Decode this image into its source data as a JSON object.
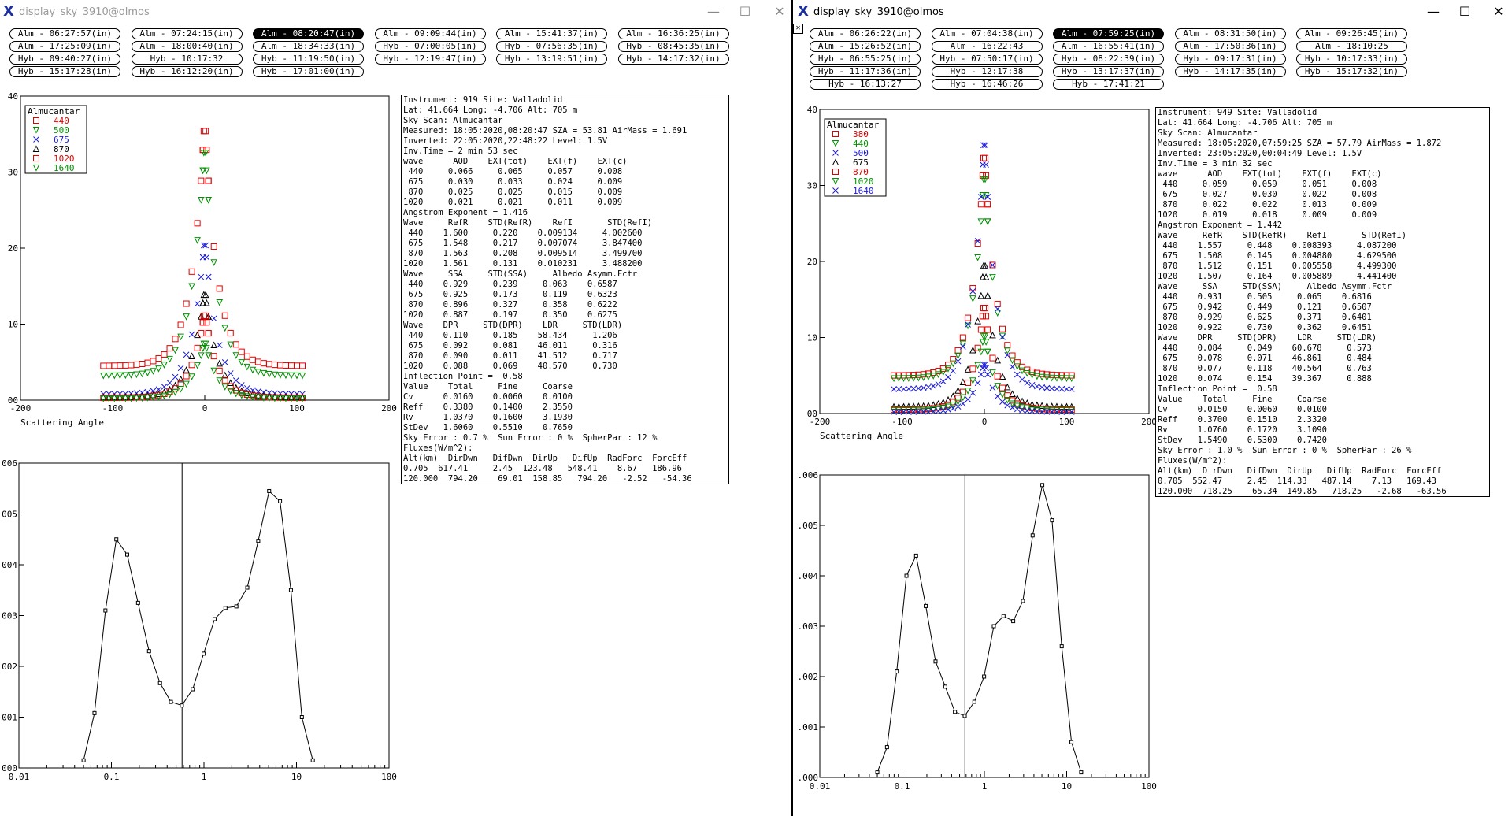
{
  "colors": {
    "red": "#e00000",
    "green": "#009000",
    "blue": "#1a1ad8",
    "black": "#000000",
    "title_x": "#1a2e9c"
  },
  "windows": [
    {
      "title": "display_sky_3910@olmos",
      "active": false,
      "buttons": [
        "Alm - 06:27:57(in)",
        "Alm - 07:24:15(in)",
        "Alm - 08:20:47(in)",
        "Alm - 09:09:44(in)",
        "Alm - 15:41:37(in)",
        "Alm - 16:36:25(in)",
        "Alm - 17:25:09(in)",
        "Alm - 18:00:40(in)",
        "Alm - 18:34:33(in)",
        "Hyb - 07:00:05(in)",
        "Hyb - 07:56:35(in)",
        "Hyb - 08:45:35(in)",
        "Hyb - 09:40:27(in)",
        "Hyb - 10:17:32",
        "Hyb - 11:19:50(in)",
        "Hyb - 12:19:47(in)",
        "Hyb - 13:19:51(in)",
        "Hyb - 14:17:32(in)",
        "Hyb - 15:17:28(in)",
        "Hyb - 16:12:20(in)",
        "Hyb - 17:01:00(in)"
      ],
      "selected_button": 2,
      "info_lines": [
        "Instrument: 919 Site: Valladolid",
        "Lat: 41.664 Long: -4.706 Alt: 705 m",
        "Sky Scan: Almucantar",
        "Measured: 18:05:2020,08:20:47 SZA = 53.81 AirMass = 1.691",
        "Inverted: 22:05:2020,22:48:22 Level: 1.5V",
        "Inv.Time = 2 min 53 sec",
        "wave      AOD    EXT(tot)    EXT(f)    EXT(c)",
        " 440     0.066     0.065     0.057     0.008",
        " 675     0.030     0.033     0.024     0.009",
        " 870     0.025     0.025     0.015     0.009",
        "1020     0.021     0.021     0.011     0.009",
        "Angstrom Exponent = 1.416",
        "Wave     RefR    STD(RefR)    RefI       STD(RefI)",
        " 440    1.600     0.220    0.009134     4.002600",
        " 675    1.548     0.217    0.007074     3.847400",
        " 870    1.563     0.208    0.009514     3.499700",
        "1020    1.561     0.131    0.010231     3.488200",
        "Wave     SSA     STD(SSA)     Albedo Asymm.Fctr",
        " 440    0.929     0.239     0.063    0.6587",
        " 675    0.925     0.173     0.119    0.6323",
        " 870    0.896     0.327     0.358    0.6222",
        "1020    0.887     0.197     0.350    0.6275",
        "Wave    DPR     STD(DPR)    LDR     STD(LDR)",
        " 440    0.110     0.185    58.434     1.206",
        " 675    0.092     0.081    46.011     0.316",
        " 870    0.090     0.011    41.512     0.717",
        "1020    0.088     0.069    40.570     0.730",
        "Inflection Point =  0.58",
        "Value    Total     Fine     Coarse",
        "Cv      0.0160    0.0060    0.0100",
        "Reff    0.3380    0.1400    2.3550",
        "Rv      1.0370    0.1600    3.1930",
        "StDev   1.6060    0.5510    0.7650",
        "Sky Error : 0.7 %  Sun Error : 0 %  SpherPar : 12 %",
        "Fluxes(W/m^2):",
        "Alt(km)  DirDwn   DifDwn  DirUp   DifUp  RadForc  ForcEff",
        "0.705  617.41     2.45  123.48   548.41    8.67   186.96",
        "120.000  794.20    69.01  158.85   794.20   -2.52   -54.36"
      ],
      "scatter_chart": {
        "type": "scatter",
        "title": "",
        "xlabel": "Scattering Angle",
        "ylabel": "",
        "xlim": [
          -200,
          200
        ],
        "ylim": [
          0,
          40
        ],
        "xticks": [
          -200,
          -100,
          0,
          100,
          200
        ],
        "yticks": [
          0,
          10,
          20,
          30,
          40
        ],
        "xtick_labels": [
          "-200",
          "-100",
          "0",
          "100",
          "200"
        ],
        "ytick_labels": [
          "00",
          "10",
          "20",
          "30",
          "40"
        ],
        "legend_title": "Almucantar",
        "legend_position": "top-left",
        "series": [
          {
            "name": "440",
            "marker": "square",
            "color": "#e00000",
            "peak": 38,
            "edge": 4.5
          },
          {
            "name": "500",
            "marker": "triangle-down",
            "color": "#009000",
            "peak": 35,
            "edge": 3.2
          },
          {
            "name": "675",
            "marker": "x",
            "color": "#1a1ad8",
            "peak": 22,
            "edge": 0.8
          },
          {
            "name": "870",
            "marker": "triangle-up",
            "color": "#000000",
            "peak": 15,
            "edge": 0.4
          },
          {
            "name": "1020",
            "marker": "square",
            "color": "#e00000",
            "peak": 12,
            "edge": 0.3
          },
          {
            "name": "1640",
            "marker": "triangle-down",
            "color": "#009000",
            "peak": 8,
            "edge": 0.2
          }
        ]
      },
      "size_chart": {
        "type": "line",
        "title": "",
        "xlabel": "",
        "ylabel": "",
        "xscale": "log",
        "xlim": [
          0.01,
          100
        ],
        "ylim": [
          0,
          0.006
        ],
        "xtick_labels": [
          "0.01",
          "0.1",
          "1",
          "10",
          "100"
        ],
        "ytick_labels": [
          "000",
          ".001",
          ".002",
          ".003",
          ".004",
          ".005",
          ".006"
        ],
        "inflection_point": 0.58,
        "x": [
          0.05,
          0.0656,
          0.0861,
          0.113,
          0.148,
          0.194,
          0.255,
          0.335,
          0.439,
          0.577,
          0.756,
          0.992,
          1.302,
          1.708,
          2.241,
          2.94,
          3.857,
          5.06,
          6.638,
          8.709,
          11.43,
          15.0
        ],
        "y": [
          0.00015,
          0.00108,
          0.0031,
          0.0045,
          0.0042,
          0.00325,
          0.0023,
          0.00167,
          0.0013,
          0.00123,
          0.00155,
          0.00225,
          0.00293,
          0.00315,
          0.00318,
          0.00355,
          0.00447,
          0.00545,
          0.00525,
          0.0035,
          0.001,
          0.00015
        ]
      }
    },
    {
      "title": "display_sky_3910@olmos",
      "active": true,
      "buttons": [
        "Alm - 06:26:22(in)",
        "Alm - 07:04:38(in)",
        "Alm - 07:59:25(in)",
        "Alm - 08:31:50(in)",
        "Alm - 09:26:45(in)",
        "Alm - 15:26:52(in)",
        "Alm - 16:22:43",
        "Alm - 16:55:41(in)",
        "Alm - 17:50:36(in)",
        "Alm - 18:10:25",
        "Hyb - 06:55:25(in)",
        "Hyb - 07:50:17(in)",
        "Hyb - 08:22:39(in)",
        "Hyb - 09:17:31(in)",
        "Hyb - 10:17:33(in)",
        "Hyb - 11:17:36(in)",
        "Hyb - 12:17:38",
        "Hyb - 13:17:37(in)",
        "Hyb - 14:17:35(in)",
        "Hyb - 15:17:32(in)",
        "Hyb - 16:13:27",
        "Hyb - 16:46:26",
        "Hyb - 17:41:21"
      ],
      "selected_button": 2,
      "info_lines": [
        "Instrument: 949 Site: Valladolid",
        "Lat: 41.664 Long: -4.706 Alt: 705 m",
        "Sky Scan: Almucantar",
        "Measured: 18:05:2020,07:59:25 SZA = 57.79 AirMass = 1.872",
        "Inverted: 23:05:2020,00:04:49 Level: 1.5V",
        "Inv.Time = 3 min 32 sec",
        "wave      AOD    EXT(tot)    EXT(f)    EXT(c)",
        " 440     0.059     0.059     0.051     0.008",
        " 675     0.027     0.030     0.022     0.008",
        " 870     0.022     0.022     0.013     0.009",
        "1020     0.019     0.018     0.009     0.009",
        "Angstrom Exponent = 1.442",
        "Wave     RefR    STD(RefR)    RefI       STD(RefI)",
        " 440    1.557     0.448    0.008393     4.087200",
        " 675    1.508     0.145    0.004880     4.629500",
        " 870    1.512     0.151    0.005558     4.499300",
        "1020    1.507     0.164    0.005889     4.441400",
        "Wave     SSA     STD(SSA)     Albedo Asymm.Fctr",
        " 440    0.931     0.505     0.065    0.6816",
        " 675    0.942     0.449     0.121    0.6507",
        " 870    0.929     0.625     0.371    0.6401",
        "1020    0.922     0.730     0.362    0.6451",
        "Wave    DPR     STD(DPR)    LDR     STD(LDR)",
        " 440    0.084     0.049    60.678     0.573",
        " 675    0.078     0.071    46.861     0.484",
        " 870    0.077     0.118    40.564     0.763",
        "1020    0.074     0.154    39.367     0.888",
        "Inflection Point =  0.58",
        "Value    Total     Fine     Coarse",
        "Cv      0.0150    0.0060    0.0100",
        "Reff    0.3700    0.1510    2.3320",
        "Rv      1.0760    0.1720    3.1090",
        "StDev   1.5490    0.5300    0.7420",
        "Sky Error : 1.0 %  Sun Error : 0 %  SpherPar : 26 %",
        "Fluxes(W/m^2):",
        "Alt(km)  DirDwn   DifDwn  DirUp   DifUp  RadForc  ForcEff",
        "0.705  552.47     2.45  114.33   487.14    7.13   169.43",
        "120.000  718.25    65.34  149.85   718.25   -2.68   -63.56"
      ],
      "scatter_chart": {
        "type": "scatter",
        "title": "",
        "xlabel": "Scattering Angle",
        "ylabel": "",
        "xlim": [
          -200,
          200
        ],
        "ylim": [
          0,
          40
        ],
        "xticks": [
          -200,
          -100,
          0,
          100,
          200
        ],
        "yticks": [
          0,
          10,
          20,
          30,
          40
        ],
        "xtick_labels": [
          "-200",
          "-100",
          "0",
          "100",
          "200"
        ],
        "ytick_labels": [
          "00",
          "10",
          "20",
          "30",
          "40"
        ],
        "legend_title": "Almucantar",
        "legend_position": "top-left",
        "series": [
          {
            "name": "380",
            "marker": "square",
            "color": "#e00000",
            "peak": 36,
            "edge": 5
          },
          {
            "name": "440",
            "marker": "triangle-down",
            "color": "#009000",
            "peak": 33,
            "edge": 4.6
          },
          {
            "name": "500",
            "marker": "x",
            "color": "#1a1ad8",
            "peak": 38,
            "edge": 3.2
          },
          {
            "name": "675",
            "marker": "triangle-up",
            "color": "#000000",
            "peak": 21,
            "edge": 0.9
          },
          {
            "name": "870",
            "marker": "square",
            "color": "#e00000",
            "peak": 15,
            "edge": 0.5
          },
          {
            "name": "1020",
            "marker": "triangle-down",
            "color": "#009000",
            "peak": 11,
            "edge": 0.4
          },
          {
            "name": "1640",
            "marker": "x",
            "color": "#1a1ad8",
            "peak": 7,
            "edge": 0.2
          }
        ]
      },
      "size_chart": {
        "type": "line",
        "title": "",
        "xlabel": "",
        "ylabel": "",
        "xscale": "log",
        "xlim": [
          0.01,
          100
        ],
        "ylim": [
          0,
          0.006
        ],
        "xtick_labels": [
          "0.01",
          "0.1",
          "1",
          "10",
          "100"
        ],
        "ytick_labels": [
          ".000",
          ".001",
          ".002",
          ".003",
          ".004",
          ".005",
          ".006"
        ],
        "inflection_point": 0.58,
        "x": [
          0.05,
          0.0656,
          0.0861,
          0.113,
          0.148,
          0.194,
          0.255,
          0.335,
          0.439,
          0.577,
          0.756,
          0.992,
          1.302,
          1.708,
          2.241,
          2.94,
          3.857,
          5.06,
          6.638,
          8.709,
          11.43,
          15.0
        ],
        "y": [
          0.0001,
          0.0006,
          0.0021,
          0.004,
          0.0044,
          0.0034,
          0.0023,
          0.0018,
          0.0013,
          0.00122,
          0.0015,
          0.002,
          0.003,
          0.0032,
          0.0031,
          0.0035,
          0.0048,
          0.0058,
          0.0051,
          0.0026,
          0.0007,
          0.0001
        ]
      }
    }
  ]
}
